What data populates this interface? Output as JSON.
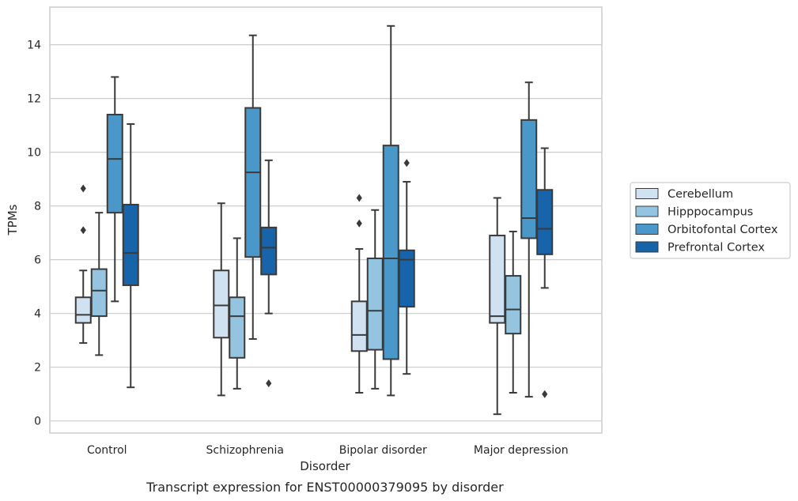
{
  "chart_data": {
    "type": "box",
    "caption": "Transcript expression for ENST00000379095 by disorder",
    "xlabel": "Disorder",
    "ylabel": "TPMs",
    "ylim": [
      -0.45,
      15.4
    ],
    "yticks": [
      0,
      2,
      4,
      6,
      8,
      10,
      12,
      14
    ],
    "grid": "horizontal",
    "legend_position": "right",
    "categories": [
      "Control",
      "Schizophrenia",
      "Bipolar disorder",
      "Major depression"
    ],
    "series": [
      {
        "name": "Cerebellum",
        "color": "#d0e1f2",
        "boxes": [
          {
            "whislo": 2.9,
            "q1": 3.65,
            "med": 3.95,
            "q3": 4.6,
            "whishi": 5.6,
            "fliers": [
              7.1,
              8.65
            ]
          },
          {
            "whislo": 0.95,
            "q1": 3.1,
            "med": 4.3,
            "q3": 5.6,
            "whishi": 8.1,
            "fliers": []
          },
          {
            "whislo": 1.05,
            "q1": 2.6,
            "med": 3.2,
            "q3": 4.45,
            "whishi": 6.4,
            "fliers": [
              7.35,
              8.3
            ]
          },
          {
            "whislo": 0.25,
            "q1": 3.65,
            "med": 3.9,
            "q3": 6.9,
            "whishi": 8.3,
            "fliers": []
          }
        ]
      },
      {
        "name": "Hipppocampus",
        "color": "#94c4df",
        "boxes": [
          {
            "whislo": 2.45,
            "q1": 3.9,
            "med": 4.85,
            "q3": 5.65,
            "whishi": 7.75,
            "fliers": []
          },
          {
            "whislo": 1.2,
            "q1": 2.35,
            "med": 3.9,
            "q3": 4.6,
            "whishi": 6.8,
            "fliers": []
          },
          {
            "whislo": 1.2,
            "q1": 2.65,
            "med": 4.1,
            "q3": 6.05,
            "whishi": 7.85,
            "fliers": []
          },
          {
            "whislo": 1.05,
            "q1": 3.25,
            "med": 4.15,
            "q3": 5.4,
            "whishi": 7.05,
            "fliers": []
          }
        ]
      },
      {
        "name": "Orbitofontal Cortex",
        "color": "#4a98c9",
        "boxes": [
          {
            "whislo": 4.45,
            "q1": 7.75,
            "med": 9.75,
            "q3": 11.4,
            "whishi": 12.8,
            "fliers": []
          },
          {
            "whislo": 3.05,
            "q1": 6.1,
            "med": 9.25,
            "q3": 11.65,
            "whishi": 14.35,
            "fliers": []
          },
          {
            "whislo": 0.95,
            "q1": 2.3,
            "med": 6.05,
            "q3": 10.25,
            "whishi": 14.7,
            "fliers": []
          },
          {
            "whislo": 0.9,
            "q1": 6.8,
            "med": 7.55,
            "q3": 11.2,
            "whishi": 12.6,
            "fliers": []
          }
        ]
      },
      {
        "name": "Prefrontal Cortex",
        "color": "#1764ab",
        "boxes": [
          {
            "whislo": 1.25,
            "q1": 5.05,
            "med": 6.25,
            "q3": 8.05,
            "whishi": 11.05,
            "fliers": []
          },
          {
            "whislo": 4.0,
            "q1": 5.45,
            "med": 6.45,
            "q3": 7.2,
            "whishi": 9.7,
            "fliers": [
              1.4
            ]
          },
          {
            "whislo": 1.75,
            "q1": 4.25,
            "med": 6.0,
            "q3": 6.35,
            "whishi": 8.9,
            "fliers": [
              9.6
            ]
          },
          {
            "whislo": 4.95,
            "q1": 6.2,
            "med": 7.15,
            "q3": 8.6,
            "whishi": 10.15,
            "fliers": [
              1.0
            ]
          }
        ]
      }
    ]
  },
  "colors": {
    "grid": "#cccccc",
    "frame": "#cccccc",
    "box_edge": "#3a3a3a",
    "text": "#262626"
  }
}
